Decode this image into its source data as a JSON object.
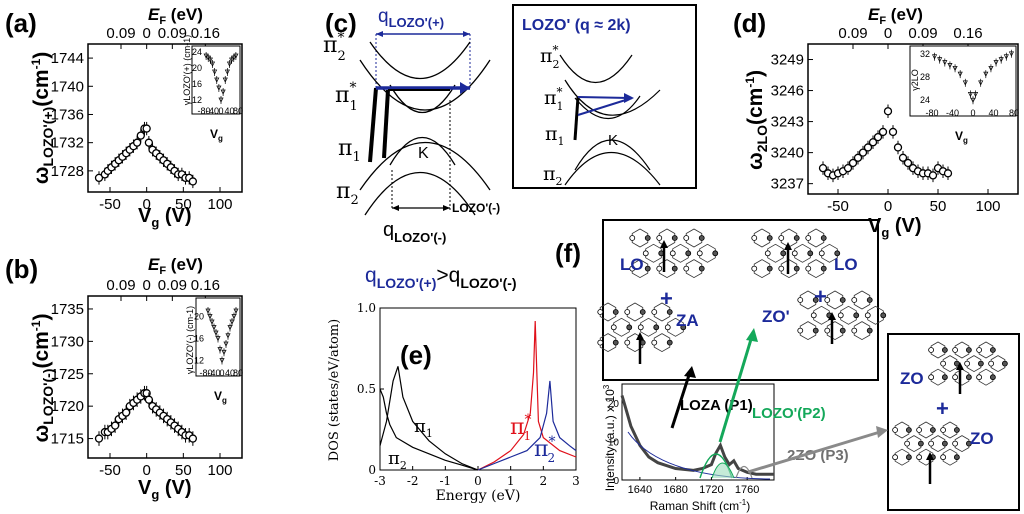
{
  "panels": {
    "a": {
      "label": "(a)",
      "ef_label": "E",
      "ef_sub": "F",
      "ef_unit": " (eV)",
      "top_ticks": [
        "0.09",
        "0",
        "0.09",
        "0.16"
      ],
      "ylabel": "ω",
      "ylabel_sub": "LOZO'(+)",
      "ylabel_unit": "(cm",
      "ylabel_exp": "-1",
      "ylabel_close": ")",
      "xlabel": "V",
      "xlabel_sub": "g",
      "xlabel_unit": " (V)",
      "inset_ylabel": "γLOZO'(+) (cm-1)",
      "inset_xlabel": "V",
      "inset_xlabel_sub": "g"
    },
    "b": {
      "label": "(b)",
      "ef_label": "E",
      "ef_sub": "F",
      "ef_unit": " (eV)",
      "top_ticks": [
        "0.09",
        "0",
        "0.09",
        "0.16"
      ],
      "ylabel": "ω",
      "ylabel_sub": "LOZO'(-)",
      "ylabel_unit": "(cm",
      "ylabel_exp": "-1",
      "ylabel_close": ")",
      "xlabel": "V",
      "xlabel_sub": "g",
      "xlabel_unit": " (V)",
      "inset_ylabel": "γLOZO'(-) (cm-1)",
      "inset_xlabel": "V",
      "inset_xlabel_sub": "g"
    },
    "c": {
      "label": "(c)",
      "q_plus": "q",
      "q_plus_sub": "LOZO'(+)",
      "q_minus": "q",
      "q_minus_sub": "LOZO'(-)",
      "lozo_minus_label": "LOZO'(-)",
      "compare_q1": "q",
      "compare_q1_sub": "LOZO'(+)",
      "compare_gt": ">q",
      "compare_q2_sub": "LOZO'(-)",
      "pi2s": "π",
      "pi1s": "π",
      "pi1": "π",
      "pi2": "π",
      "sub1": "1",
      "sub2": "2",
      "star": "*",
      "k": "K",
      "box_title": "LOZO' (q ≈ 2k)"
    },
    "d": {
      "label": "(d)",
      "ef_label": "E",
      "ef_sub": "F",
      "ef_unit": " (eV)",
      "top_ticks": [
        "0.09",
        "0",
        "0.09",
        "0.16"
      ],
      "ylabel": "ω",
      "ylabel_sub": "2LO",
      "ylabel_unit": "(cm",
      "ylabel_exp": "-1",
      "ylabel_close": ")",
      "xlabel": "V",
      "xlabel_sub": "g",
      "xlabel_unit": " (V)",
      "inset_ylabel": "γ2LO",
      "inset_xlabel": "V",
      "inset_xlabel_sub": "g"
    },
    "e": {
      "label": "(e)",
      "ylabel": "DOS (states/eV/atom)",
      "xlabel": "Energy (eV)",
      "pi1": "π",
      "pi2": "π",
      "sub1": "1",
      "sub2": "2",
      "star": "*"
    },
    "f": {
      "label": "(f)",
      "mode_labels": [
        "LO",
        "ZA",
        "ZO'",
        "LO",
        "ZO",
        "ZO"
      ],
      "plus": "+",
      "peak_p1": "LOZA (P1)",
      "peak_p2": "LOZO'(P2)",
      "peak_p3": "2ZO (P3)",
      "ylabel": "Intensity (a.u.) x 10",
      "ylabel_exp": "3",
      "xlabel": "Raman Shift (cm",
      "xlabel_exp": "-1",
      "xlabel_close": ")",
      "atom_labels": {
        "A1": "A",
        "A2": "A",
        "B1": "B",
        "B2": "B",
        "sub1": "1",
        "sub2": "2"
      }
    }
  },
  "colors": {
    "blue": "#1c2a9a",
    "red": "#e0101a",
    "green": "#14a85a",
    "gray": "#8a8a8a",
    "black": "#000000"
  },
  "chart_data": [
    {
      "type": "scatter",
      "name": "panel-a",
      "x": [
        -65,
        -57,
        -53,
        -48,
        -43,
        -38,
        -33,
        -28,
        -23,
        -18,
        -13,
        -8,
        -3,
        0,
        3,
        8,
        13,
        18,
        23,
        28,
        33,
        38,
        43,
        48,
        53,
        58,
        63
      ],
      "y": [
        1727,
        1727.5,
        1728,
        1728.5,
        1729,
        1729.5,
        1730,
        1730.5,
        1731,
        1731.5,
        1732,
        1733,
        1734,
        1734,
        1732,
        1731,
        1730.5,
        1730,
        1729.5,
        1729,
        1728.5,
        1728,
        1727.5,
        1727.5,
        1727,
        1727,
        1726.5
      ],
      "xlim": [
        -80,
        130
      ],
      "ylim": [
        1725,
        1746
      ],
      "yticks": [
        1728,
        1732,
        1736,
        1740,
        1744
      ],
      "xticks": [
        -50,
        0,
        50,
        100
      ],
      "top_ticks": [
        "0.09",
        "0",
        "0.09",
        "0.16"
      ],
      "inset": {
        "x": [
          -70,
          -60,
          -50,
          -40,
          -30,
          -20,
          -10,
          0,
          10,
          20,
          30,
          40,
          50,
          60,
          70
        ],
        "y": [
          23,
          22.5,
          22,
          21,
          19,
          17,
          15,
          12,
          14,
          17,
          19,
          21,
          22,
          22.5,
          23
        ],
        "xlim": [
          -80,
          80
        ],
        "ylim": [
          11,
          25
        ],
        "yticks": [
          12,
          16,
          20,
          24
        ],
        "xticks": [
          -80,
          -40,
          0,
          40,
          80
        ]
      }
    },
    {
      "type": "scatter",
      "name": "panel-b",
      "x": [
        -65,
        -57,
        -53,
        -48,
        -43,
        -38,
        -33,
        -28,
        -23,
        -18,
        -13,
        -8,
        -3,
        0,
        3,
        8,
        13,
        18,
        23,
        28,
        33,
        38,
        43,
        48,
        53,
        58,
        63
      ],
      "y": [
        1715,
        1716,
        1716,
        1716.5,
        1717,
        1718,
        1718.5,
        1719,
        1720,
        1720.5,
        1721,
        1721.5,
        1722,
        1722,
        1721,
        1720,
        1719.5,
        1719,
        1718.5,
        1718,
        1717.5,
        1717,
        1716.5,
        1716,
        1715.5,
        1715.5,
        1715
      ],
      "xlim": [
        -80,
        130
      ],
      "ylim": [
        1712,
        1737
      ],
      "yticks": [
        1715,
        1720,
        1725,
        1730,
        1735
      ],
      "xticks": [
        -50,
        0,
        50,
        100
      ],
      "top_ticks": [
        "0.09",
        "0",
        "0.09",
        "0.16"
      ],
      "inset": {
        "x": [
          -70,
          -60,
          -50,
          -40,
          -30,
          -20,
          -10,
          0,
          10,
          20,
          30,
          40,
          50,
          60,
          70
        ],
        "y": [
          21,
          20,
          19,
          18,
          17,
          16,
          14,
          12,
          13.5,
          15,
          16.5,
          18,
          19,
          20,
          21
        ],
        "xlim": [
          -80,
          80
        ],
        "ylim": [
          11,
          23
        ],
        "yticks": [
          12,
          16,
          20
        ],
        "xticks": [
          -80,
          -40,
          0,
          40,
          80
        ]
      }
    },
    {
      "type": "scatter",
      "name": "panel-d",
      "x": [
        -65,
        -60,
        -55,
        -50,
        -45,
        -40,
        -35,
        -30,
        -25,
        -20,
        -15,
        -10,
        -5,
        0,
        5,
        10,
        15,
        20,
        25,
        30,
        35,
        40,
        45,
        50,
        55,
        60
      ],
      "y": [
        3238.5,
        3238,
        3237.8,
        3238,
        3238.2,
        3238.5,
        3239,
        3239.5,
        3240,
        3240.5,
        3241,
        3241.5,
        3242,
        3244,
        3242,
        3240.5,
        3239.5,
        3239,
        3238.5,
        3238.2,
        3238,
        3238,
        3237.8,
        3238.5,
        3238.2,
        3238
      ],
      "xlim": [
        -80,
        130
      ],
      "ylim": [
        3236,
        3250.5
      ],
      "yticks": [
        3237,
        3240,
        3243,
        3246,
        3249
      ],
      "xticks": [
        -50,
        0,
        50,
        100
      ],
      "top_ticks": [
        "0.09",
        "0",
        "0.09",
        "0.16"
      ],
      "inset": {
        "x": [
          -75,
          -65,
          -55,
          -45,
          -35,
          -25,
          -15,
          -5,
          0,
          5,
          15,
          25,
          35,
          45,
          55,
          65,
          75
        ],
        "y": [
          31.5,
          31,
          30.5,
          30,
          29.5,
          28.5,
          27,
          25,
          24,
          25,
          27,
          28.5,
          29.5,
          30.5,
          31,
          31.5,
          32
        ],
        "xlim": [
          -80,
          80
        ],
        "ylim": [
          23,
          33
        ],
        "yticks": [
          24,
          28,
          32
        ],
        "xticks": [
          -80,
          -40,
          0,
          40,
          80
        ]
      }
    },
    {
      "type": "line",
      "name": "panel-e-dos",
      "xlim": [
        -3,
        3
      ],
      "ylim": [
        0,
        1.0
      ],
      "xticks": [
        -3,
        -2,
        -1,
        0,
        1,
        2,
        3
      ],
      "yticks": [
        0,
        0.5,
        1.0
      ],
      "series": [
        {
          "name": "π1",
          "color": "#000000",
          "x": [
            -3,
            -2.8,
            -2.6,
            -2.45,
            -2.3,
            -2.0,
            -1.5,
            -1.0,
            -0.5,
            0
          ],
          "y": [
            0.15,
            0.3,
            0.55,
            0.64,
            0.45,
            0.3,
            0.18,
            0.1,
            0.04,
            0
          ]
        },
        {
          "name": "π2",
          "color": "#000000",
          "x": [
            -3,
            -2.9,
            -2.8,
            -2.7,
            -2.5,
            -2.0,
            -1.5,
            -1.0,
            -0.5,
            0
          ],
          "y": [
            0.5,
            0.45,
            0.35,
            0.28,
            0.2,
            0.14,
            0.1,
            0.06,
            0.03,
            0
          ]
        },
        {
          "name": "π1*",
          "color": "#e0101a",
          "x": [
            0,
            0.5,
            1.0,
            1.4,
            1.6,
            1.7,
            1.75,
            1.85,
            2.0,
            2.5,
            3.0
          ],
          "y": [
            0,
            0.05,
            0.12,
            0.22,
            0.35,
            0.6,
            0.92,
            0.3,
            0.2,
            0.12,
            0.08
          ]
        },
        {
          "name": "π2*",
          "color": "#1c2a9a",
          "x": [
            0,
            0.5,
            1.0,
            1.5,
            1.9,
            2.1,
            2.2,
            2.3,
            2.5,
            2.8,
            3.0
          ],
          "y": [
            0,
            0.04,
            0.08,
            0.12,
            0.2,
            0.35,
            0.55,
            0.3,
            0.2,
            0.15,
            0.12
          ]
        }
      ]
    },
    {
      "type": "line",
      "name": "panel-f-raman",
      "xlim": [
        1620,
        1790
      ],
      "ylim": [
        0,
        25
      ],
      "xticks": [
        1640,
        1680,
        1720,
        1760
      ],
      "yticks": [
        0,
        10,
        20
      ],
      "series": [
        {
          "color": "#000000",
          "x": [
            1620,
            1625,
            1630,
            1640,
            1650,
            1660,
            1680,
            1700,
            1710,
            1720,
            1725,
            1730,
            1735,
            1740,
            1745,
            1750,
            1760,
            1770,
            1780,
            1790
          ],
          "y": [
            22,
            18,
            14,
            9,
            6,
            4.5,
            3,
            2.5,
            3,
            4,
            7,
            9,
            6,
            4,
            5,
            3,
            2,
            1.5,
            1.5,
            1.5
          ]
        }
      ]
    }
  ]
}
